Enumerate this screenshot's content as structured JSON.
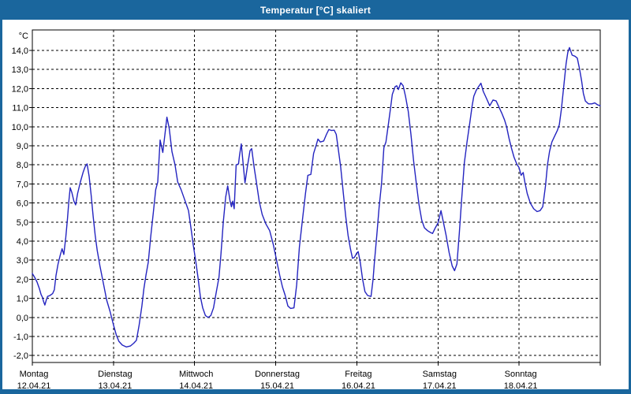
{
  "window": {
    "title": "Temperatur [°C] skaliert"
  },
  "colors": {
    "frame": "#1A669D",
    "titlebar_text": "#FFFFFF",
    "plot_background": "#FFFFFF",
    "grid": "#000000",
    "axis": "#000000",
    "line": "#2424C0"
  },
  "chart_data": {
    "type": "line",
    "title": "Temperatur [°C] skaliert",
    "grid": true,
    "legend": false,
    "y_axis": {
      "unit_label": "°C",
      "min": -2,
      "max": 14,
      "tick_step": 1,
      "tick_labels": [
        "14,0",
        "13,0",
        "12,0",
        "11,0",
        "10,0",
        "9,0",
        "8,0",
        "7,0",
        "6,0",
        "5,0",
        "4,0",
        "3,0",
        "2,0",
        "1,0",
        "0,0",
        "-1,0",
        "-2,0"
      ]
    },
    "x_axis": {
      "hours_total": 168,
      "hours_per_day": 24,
      "days": [
        {
          "name": "Montag",
          "date": "12.04.21"
        },
        {
          "name": "Dienstag",
          "date": "13.04.21"
        },
        {
          "name": "Mittwoch",
          "date": "14.04.21"
        },
        {
          "name": "Donnerstag",
          "date": "15.04.21"
        },
        {
          "name": "Freitag",
          "date": "16.04.21"
        },
        {
          "name": "Samstag",
          "date": "17.04.21"
        },
        {
          "name": "Sonntag",
          "date": "18.04.21"
        }
      ]
    },
    "series": [
      {
        "name": "Temperatur",
        "color": "#2424C0",
        "points": [
          [
            0,
            2.3
          ],
          [
            0.7,
            2.1
          ],
          [
            1.4,
            1.85
          ],
          [
            2.1,
            1.5
          ],
          [
            2.6,
            1.2
          ],
          [
            3.0,
            1.05
          ],
          [
            3.3,
            0.85
          ],
          [
            3.7,
            0.65
          ],
          [
            4.1,
            0.9
          ],
          [
            4.5,
            1.1
          ],
          [
            5.2,
            1.15
          ],
          [
            6.0,
            1.25
          ],
          [
            6.5,
            1.45
          ],
          [
            7.0,
            2.2
          ],
          [
            7.6,
            2.8
          ],
          [
            8.3,
            3.3
          ],
          [
            8.8,
            3.6
          ],
          [
            9.3,
            3.3
          ],
          [
            9.9,
            4.2
          ],
          [
            10.4,
            5.2
          ],
          [
            10.8,
            6.1
          ],
          [
            11.2,
            6.8
          ],
          [
            11.7,
            6.55
          ],
          [
            12.3,
            6.1
          ],
          [
            12.8,
            5.9
          ],
          [
            13.4,
            6.5
          ],
          [
            14.2,
            7.1
          ],
          [
            15.0,
            7.6
          ],
          [
            15.6,
            7.9
          ],
          [
            16.2,
            8.05
          ],
          [
            16.8,
            7.4
          ],
          [
            17.4,
            6.4
          ],
          [
            18.0,
            5.3
          ],
          [
            18.6,
            4.3
          ],
          [
            19.2,
            3.5
          ],
          [
            20.0,
            2.7
          ],
          [
            21.0,
            1.8
          ],
          [
            22.0,
            0.9
          ],
          [
            23.0,
            0.3
          ],
          [
            24.0,
            -0.4
          ],
          [
            24.8,
            -0.9
          ],
          [
            25.6,
            -1.25
          ],
          [
            26.6,
            -1.45
          ],
          [
            27.8,
            -1.55
          ],
          [
            29.0,
            -1.5
          ],
          [
            30.0,
            -1.35
          ],
          [
            30.8,
            -1.2
          ],
          [
            31.6,
            -0.4
          ],
          [
            32.4,
            0.6
          ],
          [
            33.0,
            1.5
          ],
          [
            33.6,
            2.2
          ],
          [
            34.3,
            2.9
          ],
          [
            35.0,
            4.2
          ],
          [
            35.8,
            5.5
          ],
          [
            36.5,
            6.7
          ],
          [
            37.1,
            7.1
          ],
          [
            37.8,
            9.3
          ],
          [
            38.6,
            8.65
          ],
          [
            39.3,
            9.7
          ],
          [
            39.8,
            10.5
          ],
          [
            40.5,
            9.9
          ],
          [
            41.3,
            8.7
          ],
          [
            42.2,
            8.0
          ],
          [
            43.0,
            7.1
          ],
          [
            44.0,
            6.7
          ],
          [
            45.0,
            6.2
          ],
          [
            46.2,
            5.6
          ],
          [
            47.0,
            4.6
          ],
          [
            47.6,
            3.8
          ],
          [
            48.3,
            3.0
          ],
          [
            49.0,
            2.1
          ],
          [
            49.7,
            1.1
          ],
          [
            50.4,
            0.5
          ],
          [
            51.2,
            0.1
          ],
          [
            52.0,
            0.0
          ],
          [
            52.8,
            0.1
          ],
          [
            53.6,
            0.5
          ],
          [
            54.4,
            1.3
          ],
          [
            55.2,
            2.1
          ],
          [
            55.8,
            3.3
          ],
          [
            56.5,
            5.0
          ],
          [
            57.2,
            6.3
          ],
          [
            57.8,
            6.9
          ],
          [
            58.5,
            6.1
          ],
          [
            58.9,
            5.8
          ],
          [
            59.3,
            6.1
          ],
          [
            59.7,
            5.7
          ],
          [
            60.3,
            8.0
          ],
          [
            61.0,
            8.05
          ],
          [
            61.3,
            8.5
          ],
          [
            61.8,
            9.1
          ],
          [
            62.4,
            8.0
          ],
          [
            62.9,
            7.05
          ],
          [
            63.6,
            7.9
          ],
          [
            64.4,
            8.75
          ],
          [
            64.9,
            8.85
          ],
          [
            65.6,
            7.9
          ],
          [
            66.2,
            7.2
          ],
          [
            67.1,
            6.1
          ],
          [
            68.0,
            5.4
          ],
          [
            69.1,
            4.9
          ],
          [
            70.2,
            4.55
          ],
          [
            71.3,
            3.8
          ],
          [
            72.2,
            3.05
          ],
          [
            73.2,
            2.2
          ],
          [
            74.0,
            1.6
          ],
          [
            74.8,
            1.15
          ],
          [
            75.6,
            0.6
          ],
          [
            76.4,
            0.47
          ],
          [
            77.4,
            0.5
          ],
          [
            78.2,
            1.7
          ],
          [
            79.0,
            3.7
          ],
          [
            79.9,
            5.1
          ],
          [
            80.8,
            6.5
          ],
          [
            81.5,
            7.45
          ],
          [
            82.4,
            7.5
          ],
          [
            83.2,
            8.6
          ],
          [
            84.0,
            9.05
          ],
          [
            84.5,
            9.35
          ],
          [
            85.2,
            9.2
          ],
          [
            86.2,
            9.25
          ],
          [
            87.0,
            9.6
          ],
          [
            87.7,
            9.85
          ],
          [
            88.5,
            9.8
          ],
          [
            89.3,
            9.82
          ],
          [
            89.9,
            9.6
          ],
          [
            90.6,
            8.7
          ],
          [
            91.2,
            7.9
          ],
          [
            92.0,
            6.5
          ],
          [
            92.7,
            5.3
          ],
          [
            93.4,
            4.3
          ],
          [
            94.1,
            3.6
          ],
          [
            94.7,
            3.1
          ],
          [
            95.3,
            3.15
          ],
          [
            95.9,
            3.35
          ],
          [
            96.4,
            3.45
          ],
          [
            97.0,
            2.9
          ],
          [
            97.7,
            2.0
          ],
          [
            98.4,
            1.35
          ],
          [
            99.2,
            1.15
          ],
          [
            100.2,
            1.1
          ],
          [
            100.8,
            2.0
          ],
          [
            101.2,
            2.9
          ],
          [
            101.9,
            4.3
          ],
          [
            102.6,
            5.8
          ],
          [
            103.3,
            7.0
          ],
          [
            104.0,
            8.9
          ],
          [
            104.6,
            9.2
          ],
          [
            105.3,
            10.1
          ],
          [
            105.9,
            10.9
          ],
          [
            106.5,
            11.7
          ],
          [
            107.3,
            12.1
          ],
          [
            107.8,
            12.15
          ],
          [
            108.3,
            11.95
          ],
          [
            109.0,
            12.3
          ],
          [
            109.7,
            12.15
          ],
          [
            110.4,
            11.6
          ],
          [
            111.2,
            10.8
          ],
          [
            112.0,
            9.6
          ],
          [
            112.8,
            8.2
          ],
          [
            113.6,
            7.0
          ],
          [
            114.4,
            5.9
          ],
          [
            115.2,
            5.1
          ],
          [
            116.0,
            4.7
          ],
          [
            116.9,
            4.55
          ],
          [
            117.8,
            4.45
          ],
          [
            118.4,
            4.4
          ],
          [
            119.2,
            4.7
          ],
          [
            120.0,
            4.95
          ],
          [
            120.9,
            5.6
          ],
          [
            121.6,
            5.0
          ],
          [
            122.4,
            4.3
          ],
          [
            123.3,
            3.4
          ],
          [
            124.2,
            2.7
          ],
          [
            124.9,
            2.45
          ],
          [
            125.6,
            2.8
          ],
          [
            126.3,
            4.4
          ],
          [
            127.0,
            6.2
          ],
          [
            127.8,
            8.1
          ],
          [
            128.6,
            9.2
          ],
          [
            129.4,
            10.2
          ],
          [
            130.1,
            11.1
          ],
          [
            130.6,
            11.6
          ],
          [
            131.3,
            11.9
          ],
          [
            132.0,
            12.1
          ],
          [
            132.7,
            12.28
          ],
          [
            133.4,
            11.85
          ],
          [
            134.3,
            11.5
          ],
          [
            135.3,
            11.1
          ],
          [
            136.3,
            11.4
          ],
          [
            137.2,
            11.35
          ],
          [
            138.0,
            11.05
          ],
          [
            138.9,
            10.7
          ],
          [
            139.7,
            10.35
          ],
          [
            140.3,
            10.0
          ],
          [
            141.0,
            9.4
          ],
          [
            141.7,
            8.9
          ],
          [
            142.5,
            8.4
          ],
          [
            143.3,
            8.05
          ],
          [
            144.0,
            7.85
          ],
          [
            144.6,
            7.45
          ],
          [
            145.2,
            7.6
          ],
          [
            145.7,
            7.1
          ],
          [
            146.4,
            6.5
          ],
          [
            147.3,
            6.0
          ],
          [
            148.3,
            5.7
          ],
          [
            149.3,
            5.55
          ],
          [
            150.2,
            5.6
          ],
          [
            151.0,
            5.8
          ],
          [
            151.8,
            6.9
          ],
          [
            152.4,
            8.0
          ],
          [
            153.0,
            8.7
          ],
          [
            153.7,
            9.2
          ],
          [
            154.5,
            9.5
          ],
          [
            155.3,
            9.8
          ],
          [
            155.9,
            10.1
          ],
          [
            156.5,
            10.9
          ],
          [
            157.2,
            12.1
          ],
          [
            157.9,
            13.3
          ],
          [
            158.4,
            13.9
          ],
          [
            158.9,
            14.15
          ],
          [
            159.3,
            13.95
          ],
          [
            159.7,
            13.75
          ],
          [
            160.5,
            13.7
          ],
          [
            161.2,
            13.6
          ],
          [
            161.9,
            13.0
          ],
          [
            162.5,
            12.4
          ],
          [
            163.0,
            11.75
          ],
          [
            163.6,
            11.35
          ],
          [
            164.5,
            11.2
          ],
          [
            165.5,
            11.2
          ],
          [
            166.4,
            11.25
          ],
          [
            167.2,
            11.15
          ],
          [
            168.0,
            11.1
          ]
        ]
      }
    ]
  }
}
